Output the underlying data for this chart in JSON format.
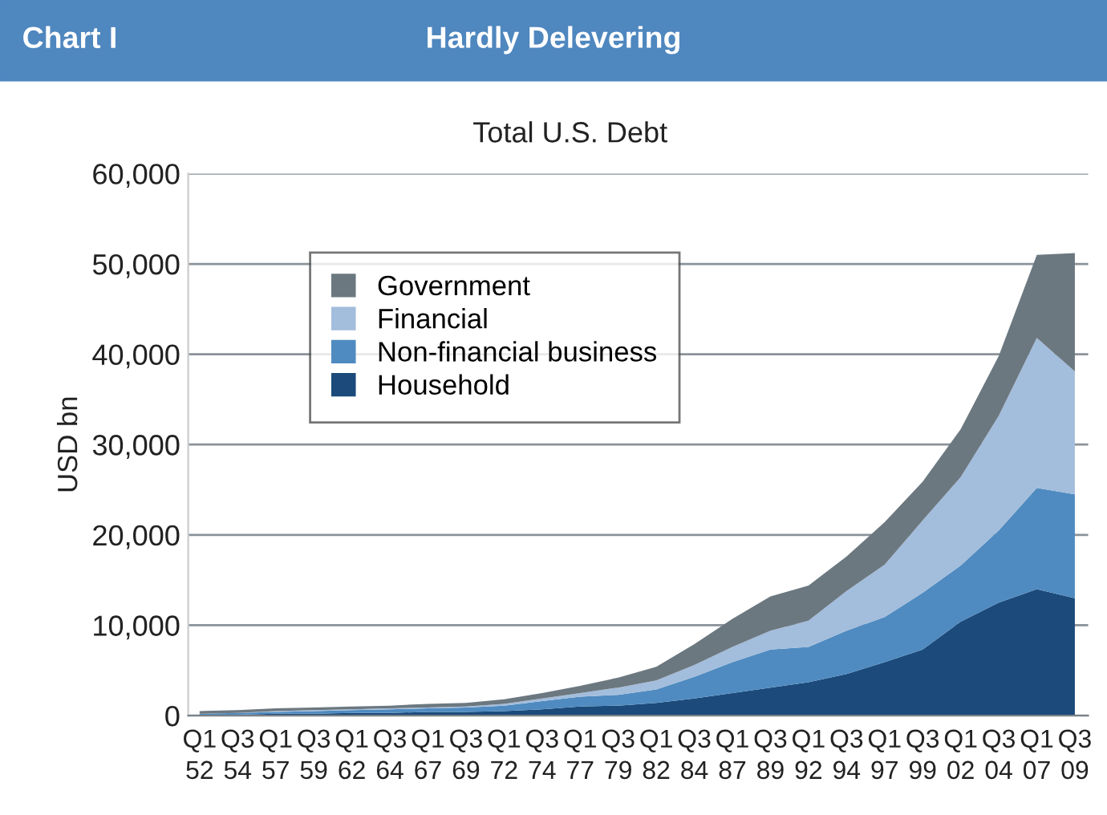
{
  "chart_data": {
    "type": "area",
    "stacked": true,
    "title": "Hardly Delevering",
    "subtitle": "Total U.S. Debt",
    "ylabel": "USD bn",
    "annotations": [
      "Chart I"
    ],
    "categories": [
      "Q1\n52",
      "Q3\n54",
      "Q1\n57",
      "Q3\n59",
      "Q1\n62",
      "Q3\n64",
      "Q1\n67",
      "Q3\n69",
      "Q1\n72",
      "Q3\n74",
      "Q1\n77",
      "Q3\n79",
      "Q1\n82",
      "Q3\n84",
      "Q1\n87",
      "Q3\n89",
      "Q1\n92",
      "Q3\n94",
      "Q1\n97",
      "Q3\n99",
      "Q1\n02",
      "Q3\n04",
      "Q1\n07",
      "Q3\n09"
    ],
    "series": [
      {
        "name": "Household",
        "color": "#1b4a7b",
        "values": [
          100,
          100,
          200,
          200,
          300,
          300,
          400,
          400,
          500,
          700,
          1000,
          1100,
          1400,
          1900,
          2500,
          3100,
          3700,
          4600,
          5900,
          7300,
          10400,
          12500,
          14000,
          13000
        ]
      },
      {
        "name": "Non-financial business",
        "color": "#4f8bc0",
        "values": [
          100,
          200,
          200,
          300,
          300,
          400,
          400,
          500,
          600,
          900,
          1100,
          1200,
          1500,
          2400,
          3400,
          4200,
          3900,
          4800,
          5000,
          6300,
          6200,
          8000,
          11200,
          11500
        ]
      },
      {
        "name": "Financial",
        "color": "#a3bddc",
        "values": [
          0,
          0,
          100,
          100,
          100,
          100,
          100,
          100,
          200,
          300,
          400,
          800,
          1000,
          1300,
          1700,
          2100,
          2900,
          4400,
          5800,
          8000,
          9800,
          12700,
          16600,
          13600
        ]
      },
      {
        "name": "Government",
        "color": "#6c7880",
        "values": [
          300,
          300,
          300,
          300,
          300,
          300,
          400,
          400,
          500,
          600,
          800,
          1100,
          1500,
          2300,
          3100,
          3800,
          3900,
          3800,
          4700,
          4300,
          5300,
          6600,
          9200,
          13100
        ]
      }
    ],
    "ylim": [
      0,
      60000
    ],
    "yticks": [
      0,
      {
        "value": 10000,
        "label": "10,000"
      },
      {
        "value": 20000,
        "label": "20,000"
      },
      {
        "value": 30000,
        "label": "30,000"
      },
      {
        "value": 40000,
        "label": "40,000"
      },
      {
        "value": 50000,
        "label": "50,000"
      },
      {
        "value": 60000,
        "label": "60,000"
      }
    ],
    "grid": "y",
    "legend": "top left"
  }
}
